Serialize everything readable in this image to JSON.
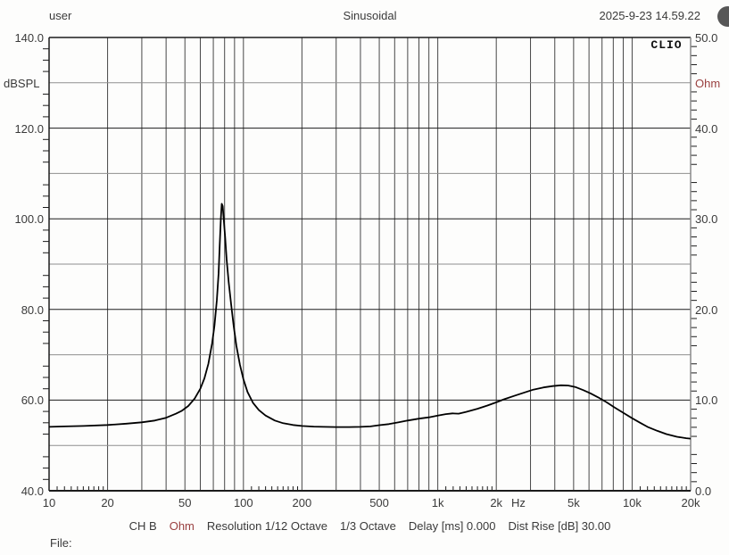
{
  "header": {
    "user": "user",
    "title": "Sinusoidal",
    "datetime": "2025-9-23 14.59.22"
  },
  "watermark": "CLIO",
  "status_bar": {
    "channel": "CH B",
    "unit": "Ohm",
    "resolution": "Resolution 1/12 Octave",
    "smoothing": "1/3 Octave",
    "delay": "Delay [ms] 0.000",
    "dist_rise": "Dist Rise [dB] 30.00"
  },
  "footer": {
    "file_label": "File:"
  },
  "colors": {
    "text": "#3a3a3a",
    "unit_accent": "#9a4040",
    "curve": "#000000",
    "grid_major": "#1c1c1c",
    "grid_minor": "#8f8f8f",
    "grid_vertical": "#474747",
    "border": "#1c1c1c",
    "border_right": "#8a8a8a",
    "circle": "#575757"
  },
  "chart_data": {
    "type": "line",
    "title": "Sinusoidal",
    "grid": true,
    "x_axis": {
      "label": "Hz",
      "scale": "log",
      "min": 10,
      "max": 20000,
      "unit_label": "Hz",
      "unit_label_freq": 2600,
      "tick_values": [
        10,
        20,
        50,
        100,
        200,
        500,
        1000,
        2000,
        5000,
        10000,
        20000
      ],
      "tick_labels": [
        "10",
        "20",
        "50",
        "100",
        "200",
        "500",
        "1k",
        "2k",
        "5k",
        "10k",
        "20k"
      ],
      "gridline_values": [
        20,
        30,
        40,
        50,
        60,
        70,
        80,
        90,
        100,
        200,
        300,
        400,
        500,
        600,
        700,
        800,
        900,
        1000,
        2000,
        3000,
        4000,
        5000,
        6000,
        7000,
        8000,
        9000,
        10000
      ]
    },
    "y_left": {
      "label": "dBSPL",
      "min": 40,
      "max": 140,
      "tick_values": [
        140,
        120,
        100,
        80,
        60,
        40
      ],
      "tick_labels": [
        "140.0",
        "120.0",
        "100.0",
        "80.0",
        "60.0",
        "40.0"
      ],
      "gridline_values": [
        130,
        120,
        110,
        100,
        90,
        80,
        70,
        60,
        50
      ]
    },
    "y_right": {
      "label": "Ohm",
      "min": 0,
      "max": 50,
      "tick_values": [
        50,
        40,
        30,
        20,
        10,
        0
      ],
      "tick_labels": [
        "50.0",
        "40.0",
        "30.0",
        "20.0",
        "10.0",
        "0.0"
      ]
    },
    "series": [
      {
        "name": "CH B impedance",
        "unit": "Ohm",
        "points_hz_ohm": [
          [
            10,
            7.05
          ],
          [
            12,
            7.1
          ],
          [
            15,
            7.15
          ],
          [
            20,
            7.25
          ],
          [
            25,
            7.4
          ],
          [
            30,
            7.55
          ],
          [
            35,
            7.75
          ],
          [
            40,
            8.05
          ],
          [
            45,
            8.5
          ],
          [
            48,
            8.8
          ],
          [
            52,
            9.35
          ],
          [
            56,
            10.15
          ],
          [
            60,
            11.25
          ],
          [
            63,
            12.4
          ],
          [
            66,
            14.0
          ],
          [
            69,
            16.25
          ],
          [
            71,
            18.25
          ],
          [
            73,
            21.0
          ],
          [
            74.5,
            24.0
          ],
          [
            75.5,
            27.0
          ],
          [
            76.5,
            30.0
          ],
          [
            77.3,
            31.65
          ],
          [
            78.2,
            31.4
          ],
          [
            79,
            30.25
          ],
          [
            80.5,
            28.0
          ],
          [
            82,
            25.5
          ],
          [
            84,
            23.0
          ],
          [
            86.5,
            20.5
          ],
          [
            89,
            18.25
          ],
          [
            92,
            16.0
          ],
          [
            96,
            13.9
          ],
          [
            100,
            12.3
          ],
          [
            105,
            10.9
          ],
          [
            112,
            9.7
          ],
          [
            120,
            8.9
          ],
          [
            130,
            8.3
          ],
          [
            145,
            7.75
          ],
          [
            160,
            7.45
          ],
          [
            180,
            7.25
          ],
          [
            200,
            7.15
          ],
          [
            230,
            7.08
          ],
          [
            260,
            7.05
          ],
          [
            300,
            7.03
          ],
          [
            350,
            7.03
          ],
          [
            400,
            7.05
          ],
          [
            450,
            7.1
          ],
          [
            500,
            7.23
          ],
          [
            560,
            7.35
          ],
          [
            630,
            7.55
          ],
          [
            700,
            7.75
          ],
          [
            800,
            7.95
          ],
          [
            900,
            8.1
          ],
          [
            1000,
            8.3
          ],
          [
            1100,
            8.45
          ],
          [
            1190,
            8.53
          ],
          [
            1280,
            8.5
          ],
          [
            1400,
            8.7
          ],
          [
            1600,
            9.05
          ],
          [
            1800,
            9.4
          ],
          [
            2000,
            9.75
          ],
          [
            2200,
            10.1
          ],
          [
            2500,
            10.5
          ],
          [
            2800,
            10.85
          ],
          [
            3100,
            11.15
          ],
          [
            3500,
            11.4
          ],
          [
            3900,
            11.55
          ],
          [
            4300,
            11.63
          ],
          [
            4700,
            11.6
          ],
          [
            5100,
            11.45
          ],
          [
            5600,
            11.1
          ],
          [
            6100,
            10.75
          ],
          [
            6700,
            10.3
          ],
          [
            7400,
            9.75
          ],
          [
            8100,
            9.2
          ],
          [
            9000,
            8.6
          ],
          [
            10000,
            8.0
          ],
          [
            11000,
            7.5
          ],
          [
            12000,
            7.05
          ],
          [
            13500,
            6.6
          ],
          [
            15000,
            6.25
          ],
          [
            17000,
            5.95
          ],
          [
            19000,
            5.8
          ],
          [
            20000,
            5.75
          ]
        ]
      }
    ],
    "annotations": {
      "resonance_peak": {
        "hz": 77.3,
        "ohm": 31.65
      },
      "secondary_peak": {
        "hz": 4300,
        "ohm": 11.63
      }
    }
  }
}
